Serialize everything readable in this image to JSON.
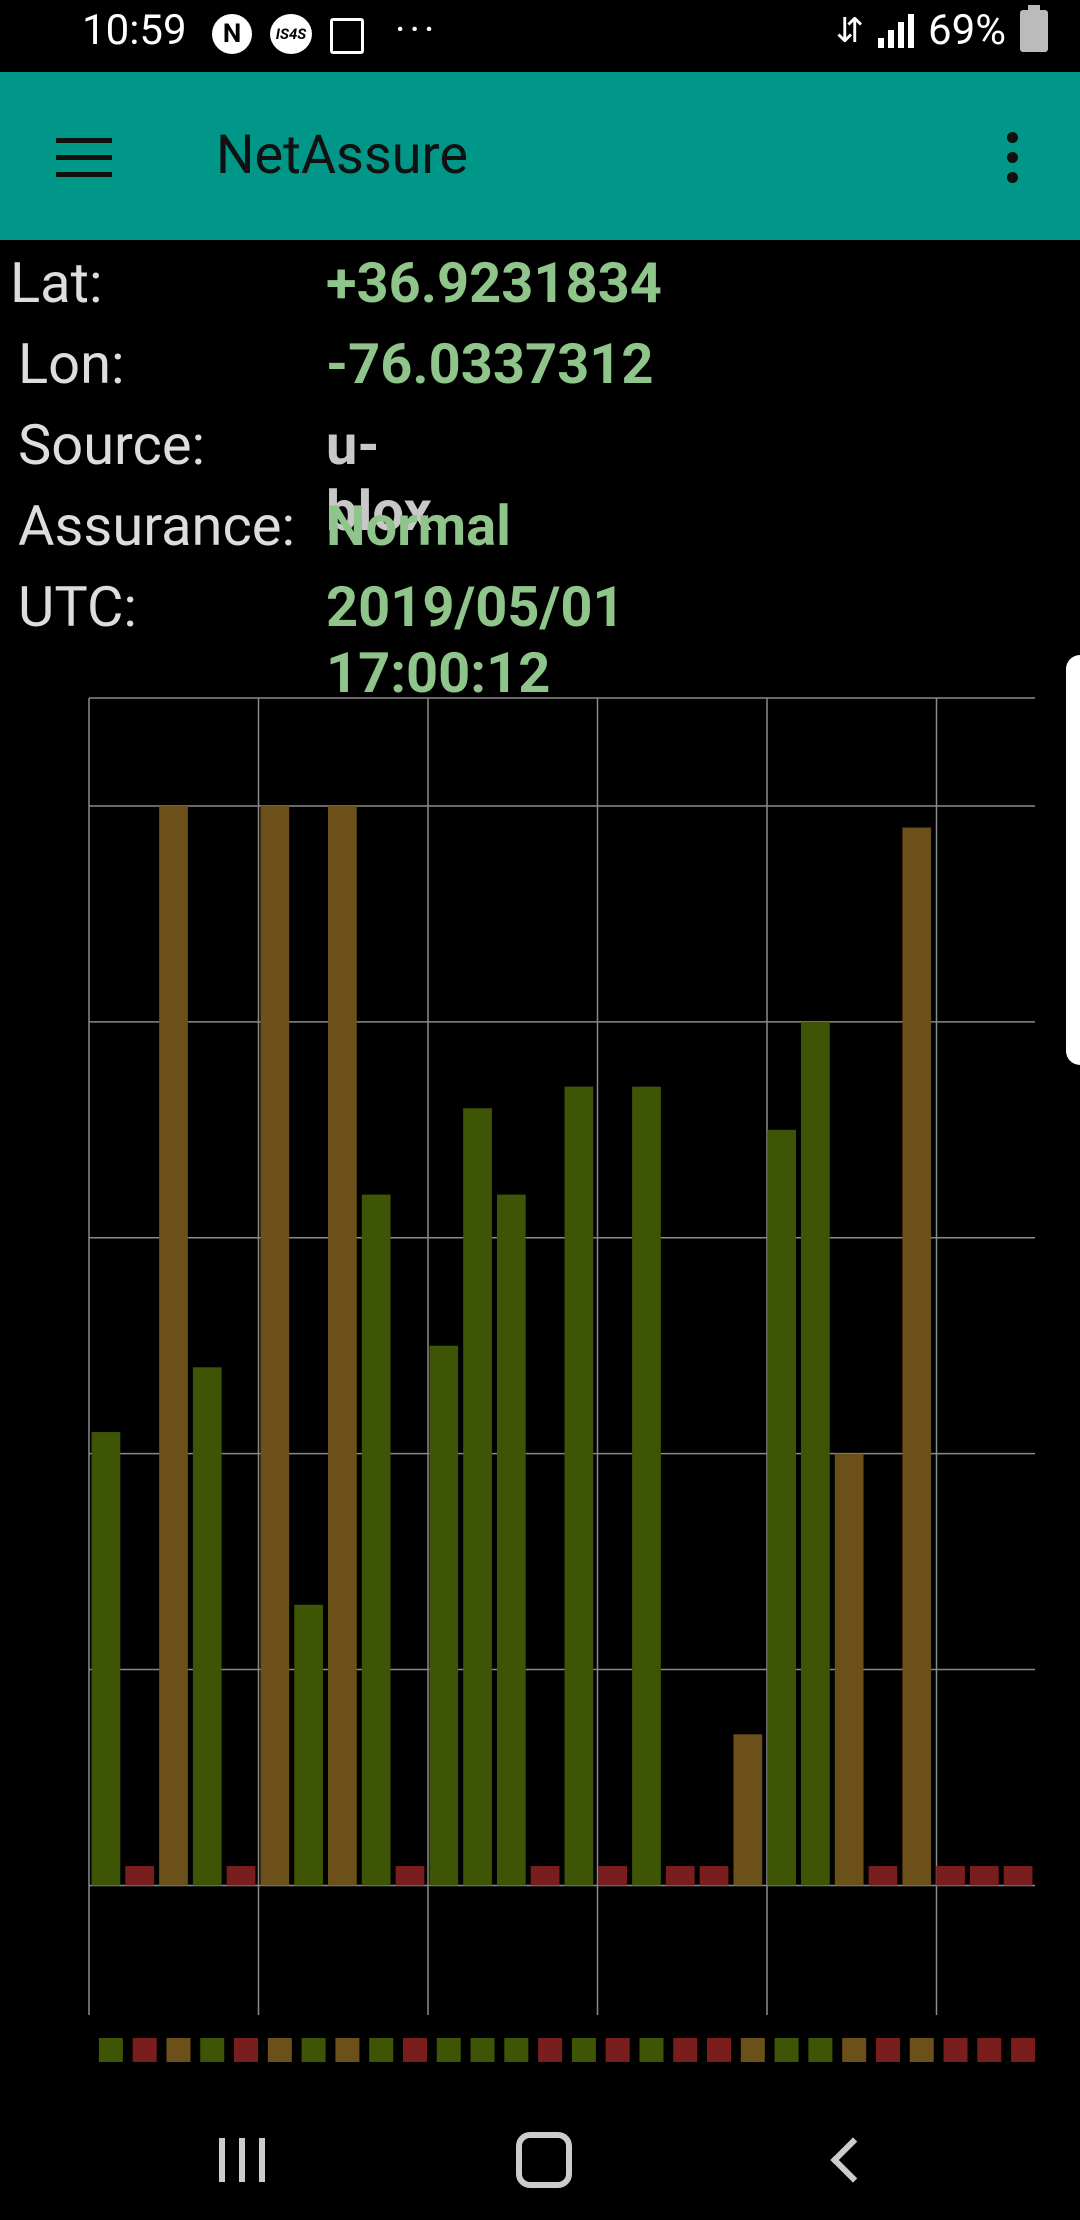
{
  "status_bar": {
    "time": "10:59",
    "battery": "69%",
    "icons": [
      "nfc-icon",
      "is4s-icon",
      "screen-search-icon",
      "more-dots-icon",
      "usb-icon",
      "signal-icon",
      "battery-icon"
    ],
    "is4s_label": "IS4S",
    "n_label": "N"
  },
  "app_bar": {
    "title": "NetAssure",
    "color": "#009688"
  },
  "info": {
    "lat_label": "Lat:",
    "lat_value": "+36.9231834",
    "lon_label": "Lon:",
    "lon_value": "-76.0337312",
    "source_label": "Source:",
    "source_value": "u-blox",
    "assurance_label": "Assurance:",
    "assurance_value": "Normal",
    "utc_label": "UTC:",
    "utc_value": "2019/05/01 17:00:12",
    "value_green": "#8fc48a",
    "value_gray": "#c8c8c8"
  },
  "chart_data": {
    "type": "bar",
    "ylim": [
      -0.6,
      5.5
    ],
    "grid": true,
    "colors": {
      "green": "#3e5506",
      "orange": "#6b5019",
      "red": "#7a1d1d"
    },
    "bar_colors": [
      "green",
      "red",
      "orange",
      "green",
      "red",
      "orange",
      "green",
      "orange",
      "green",
      "red",
      "green",
      "green",
      "green",
      "red",
      "green",
      "red",
      "green",
      "red",
      "red",
      "orange",
      "green",
      "green",
      "orange",
      "red",
      "orange",
      "red",
      "red",
      "red"
    ],
    "values": [
      2.1,
      0.09,
      5.0,
      2.4,
      0.09,
      5.0,
      1.3,
      5.0,
      3.2,
      0.09,
      2.5,
      3.6,
      3.2,
      0.09,
      3.7,
      0.09,
      3.7,
      0.09,
      0.09,
      0.7,
      3.5,
      4.0,
      2.0,
      0.09,
      4.9,
      0.09,
      0.09,
      0.09
    ]
  }
}
